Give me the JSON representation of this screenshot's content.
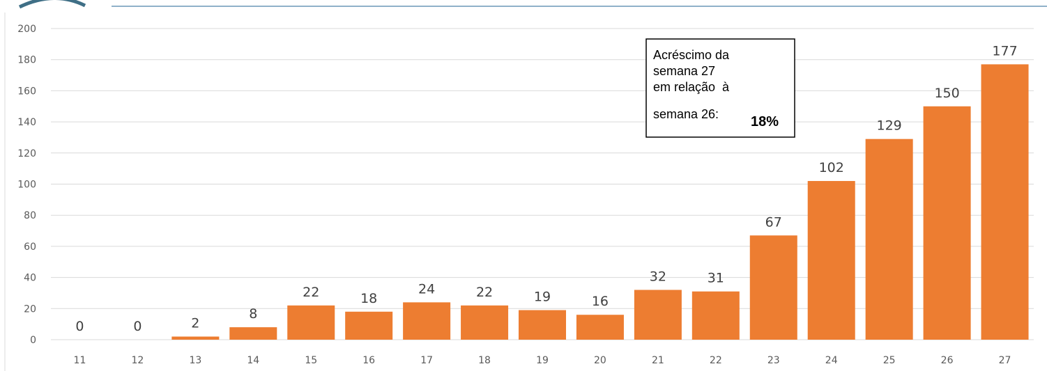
{
  "colors": {
    "bar": "#ED7D31",
    "header_line": "#8FB1C9",
    "logo": "#3F6F86"
  },
  "chart_data": {
    "type": "bar",
    "categories": [
      "11",
      "12",
      "13",
      "14",
      "15",
      "16",
      "17",
      "18",
      "19",
      "20",
      "21",
      "22",
      "23",
      "24",
      "25",
      "26",
      "27"
    ],
    "values": [
      0,
      0,
      2,
      8,
      22,
      18,
      24,
      22,
      19,
      16,
      32,
      31,
      67,
      102,
      129,
      150,
      177
    ],
    "ylim": [
      0,
      200
    ],
    "yticks": [
      0,
      20,
      40,
      60,
      80,
      100,
      120,
      140,
      160,
      180,
      200
    ],
    "grid": true,
    "legend": "none",
    "data_labels": true
  },
  "annotation": {
    "lines": [
      "Acréscimo da",
      "semana 27",
      "em relação  à",
      "semana 26:"
    ],
    "value": "18%"
  }
}
